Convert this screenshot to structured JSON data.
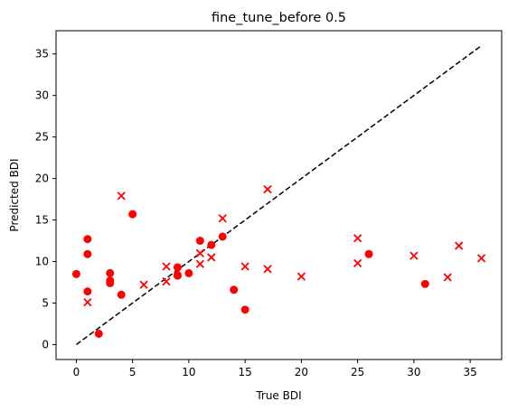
{
  "chart_data": {
    "type": "scatter",
    "title": "fine_tune_before 0.5",
    "xlabel": "True BDI",
    "ylabel": "Predicted BDI",
    "xlim": [
      -1.8,
      37.8
    ],
    "ylim": [
      -1.8,
      37.8
    ],
    "xticks": [
      0,
      5,
      10,
      15,
      20,
      25,
      30,
      35
    ],
    "yticks": [
      0,
      5,
      10,
      15,
      20,
      25,
      30,
      35
    ],
    "grid": false,
    "legend": "none",
    "reference_line": {
      "x": [
        0,
        36
      ],
      "y": [
        0,
        36
      ],
      "color": "#000000",
      "style": "dashed"
    },
    "series": [
      {
        "marker": "circle",
        "color": "#ff0000",
        "points": [
          [
            0,
            8.5
          ],
          [
            1,
            12.7
          ],
          [
            1,
            10.9
          ],
          [
            1,
            6.4
          ],
          [
            2,
            1.3
          ],
          [
            3,
            8.6
          ],
          [
            3,
            7.7
          ],
          [
            3,
            7.4
          ],
          [
            4,
            6.0
          ],
          [
            5,
            15.7
          ],
          [
            9,
            9.3
          ],
          [
            9,
            8.3
          ],
          [
            10,
            8.6
          ],
          [
            11,
            12.5
          ],
          [
            12,
            12.0
          ],
          [
            13,
            13.0
          ],
          [
            14,
            6.6
          ],
          [
            15,
            4.2
          ],
          [
            26,
            10.9
          ],
          [
            31,
            7.3
          ]
        ]
      },
      {
        "marker": "x",
        "color": "#ff0000",
        "points": [
          [
            1,
            5.1
          ],
          [
            4,
            17.9
          ],
          [
            6,
            7.2
          ],
          [
            8,
            9.4
          ],
          [
            8,
            7.6
          ],
          [
            9,
            8.9
          ],
          [
            11,
            11.0
          ],
          [
            11,
            9.7
          ],
          [
            12,
            10.5
          ],
          [
            13,
            15.2
          ],
          [
            15,
            9.4
          ],
          [
            17,
            18.7
          ],
          [
            17,
            9.1
          ],
          [
            20,
            8.2
          ],
          [
            25,
            12.8
          ],
          [
            25,
            9.8
          ],
          [
            30,
            10.7
          ],
          [
            33,
            8.1
          ],
          [
            34,
            11.9
          ],
          [
            36,
            10.4
          ]
        ]
      }
    ]
  }
}
